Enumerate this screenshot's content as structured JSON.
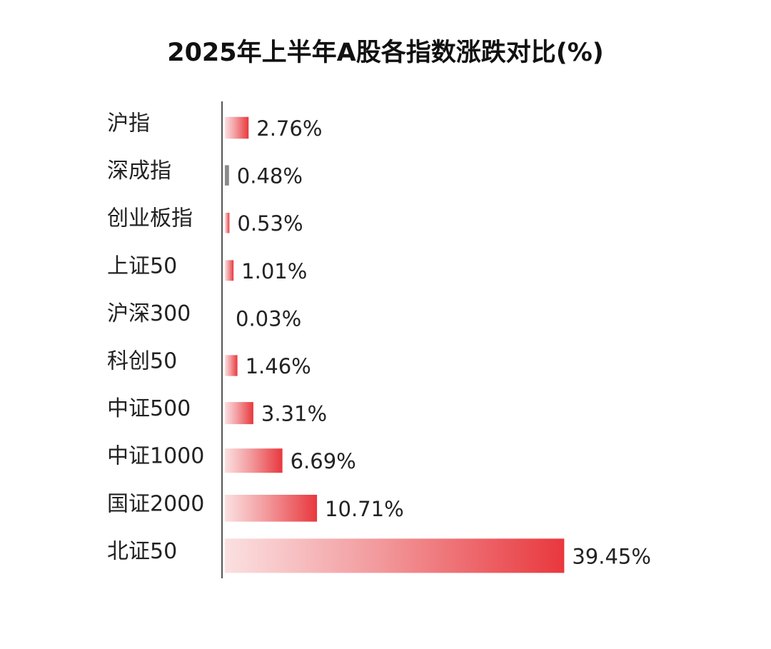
{
  "chart_data": {
    "type": "bar",
    "orientation": "horizontal",
    "title": "2025年上半年A股各指数涨跌对比(%)",
    "categories": [
      "沪指",
      "深成指",
      "创业板指",
      "上证50",
      "沪深300",
      "科创50",
      "中证500",
      "中证1000",
      "国证2000",
      "北证50"
    ],
    "values": [
      2.76,
      0.48,
      0.53,
      1.01,
      0.03,
      1.46,
      3.31,
      6.69,
      10.71,
      39.45
    ],
    "value_labels": [
      "2.76%",
      "0.48%",
      "0.53%",
      "1.01%",
      "0.03%",
      "1.46%",
      "3.31%",
      "6.69%",
      "10.71%",
      "39.45%"
    ],
    "xlim": [
      0,
      40
    ],
    "grid": false,
    "bar_color": "#e8383d"
  }
}
